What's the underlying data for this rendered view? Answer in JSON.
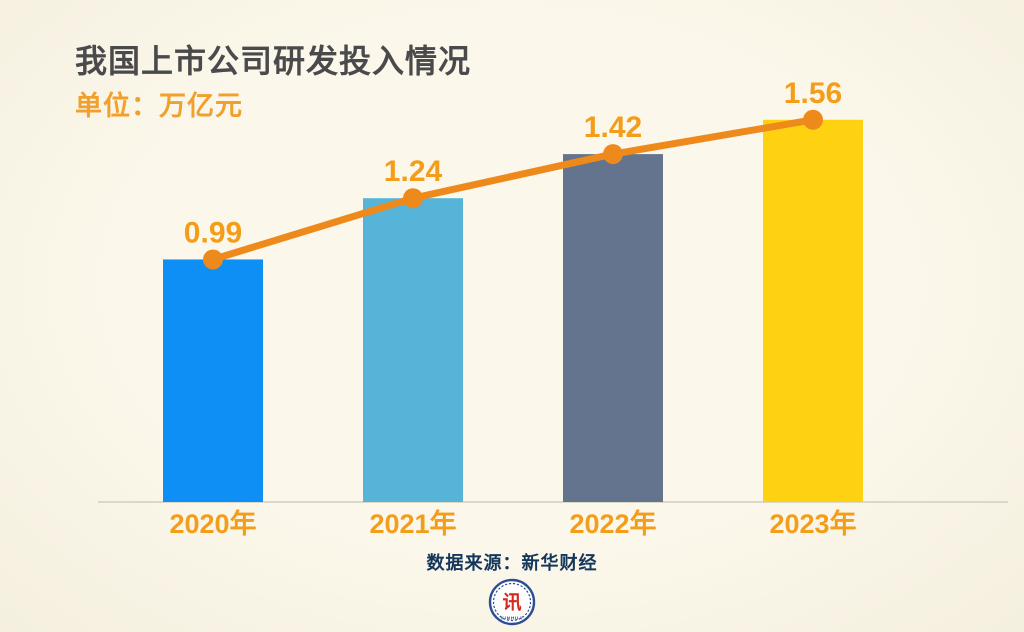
{
  "header": {
    "title": "我国上市公司研发投入情况",
    "subtitle": "单位：万亿元"
  },
  "chart_data": {
    "type": "bar",
    "overlay": "line",
    "title": "我国上市公司研发投入情况",
    "unit": "万亿元",
    "categories": [
      "2020年",
      "2021年",
      "2022年",
      "2023年"
    ],
    "values": [
      0.99,
      1.24,
      1.42,
      1.56
    ],
    "value_labels": [
      "0.99",
      "1.24",
      "1.42",
      "1.56"
    ],
    "ylim": [
      0,
      1.7
    ],
    "grid": false,
    "legend": "none",
    "bar_colors": [
      "#0E8FF5",
      "#57B4D9",
      "#64748E",
      "#FFD211"
    ],
    "line_color": "#EE8A1C",
    "marker_color": "#EE8A1C",
    "value_label_color": "#F49D1A",
    "category_label_color": "#F49D1A",
    "baseline_color": "#DCD8C9"
  },
  "footer": {
    "source": "数据来源：新华财经",
    "logo_glyph": "讯",
    "logo_text": "XINHUA"
  },
  "colors": {
    "background": "#FAF6E8",
    "title_text": "#4A4A4C",
    "subtitle_orange": "#F2A02C",
    "source_navy": "#16375C",
    "logo_ring_blue": "#2E4E93",
    "logo_glyph_red": "#D6281E"
  }
}
